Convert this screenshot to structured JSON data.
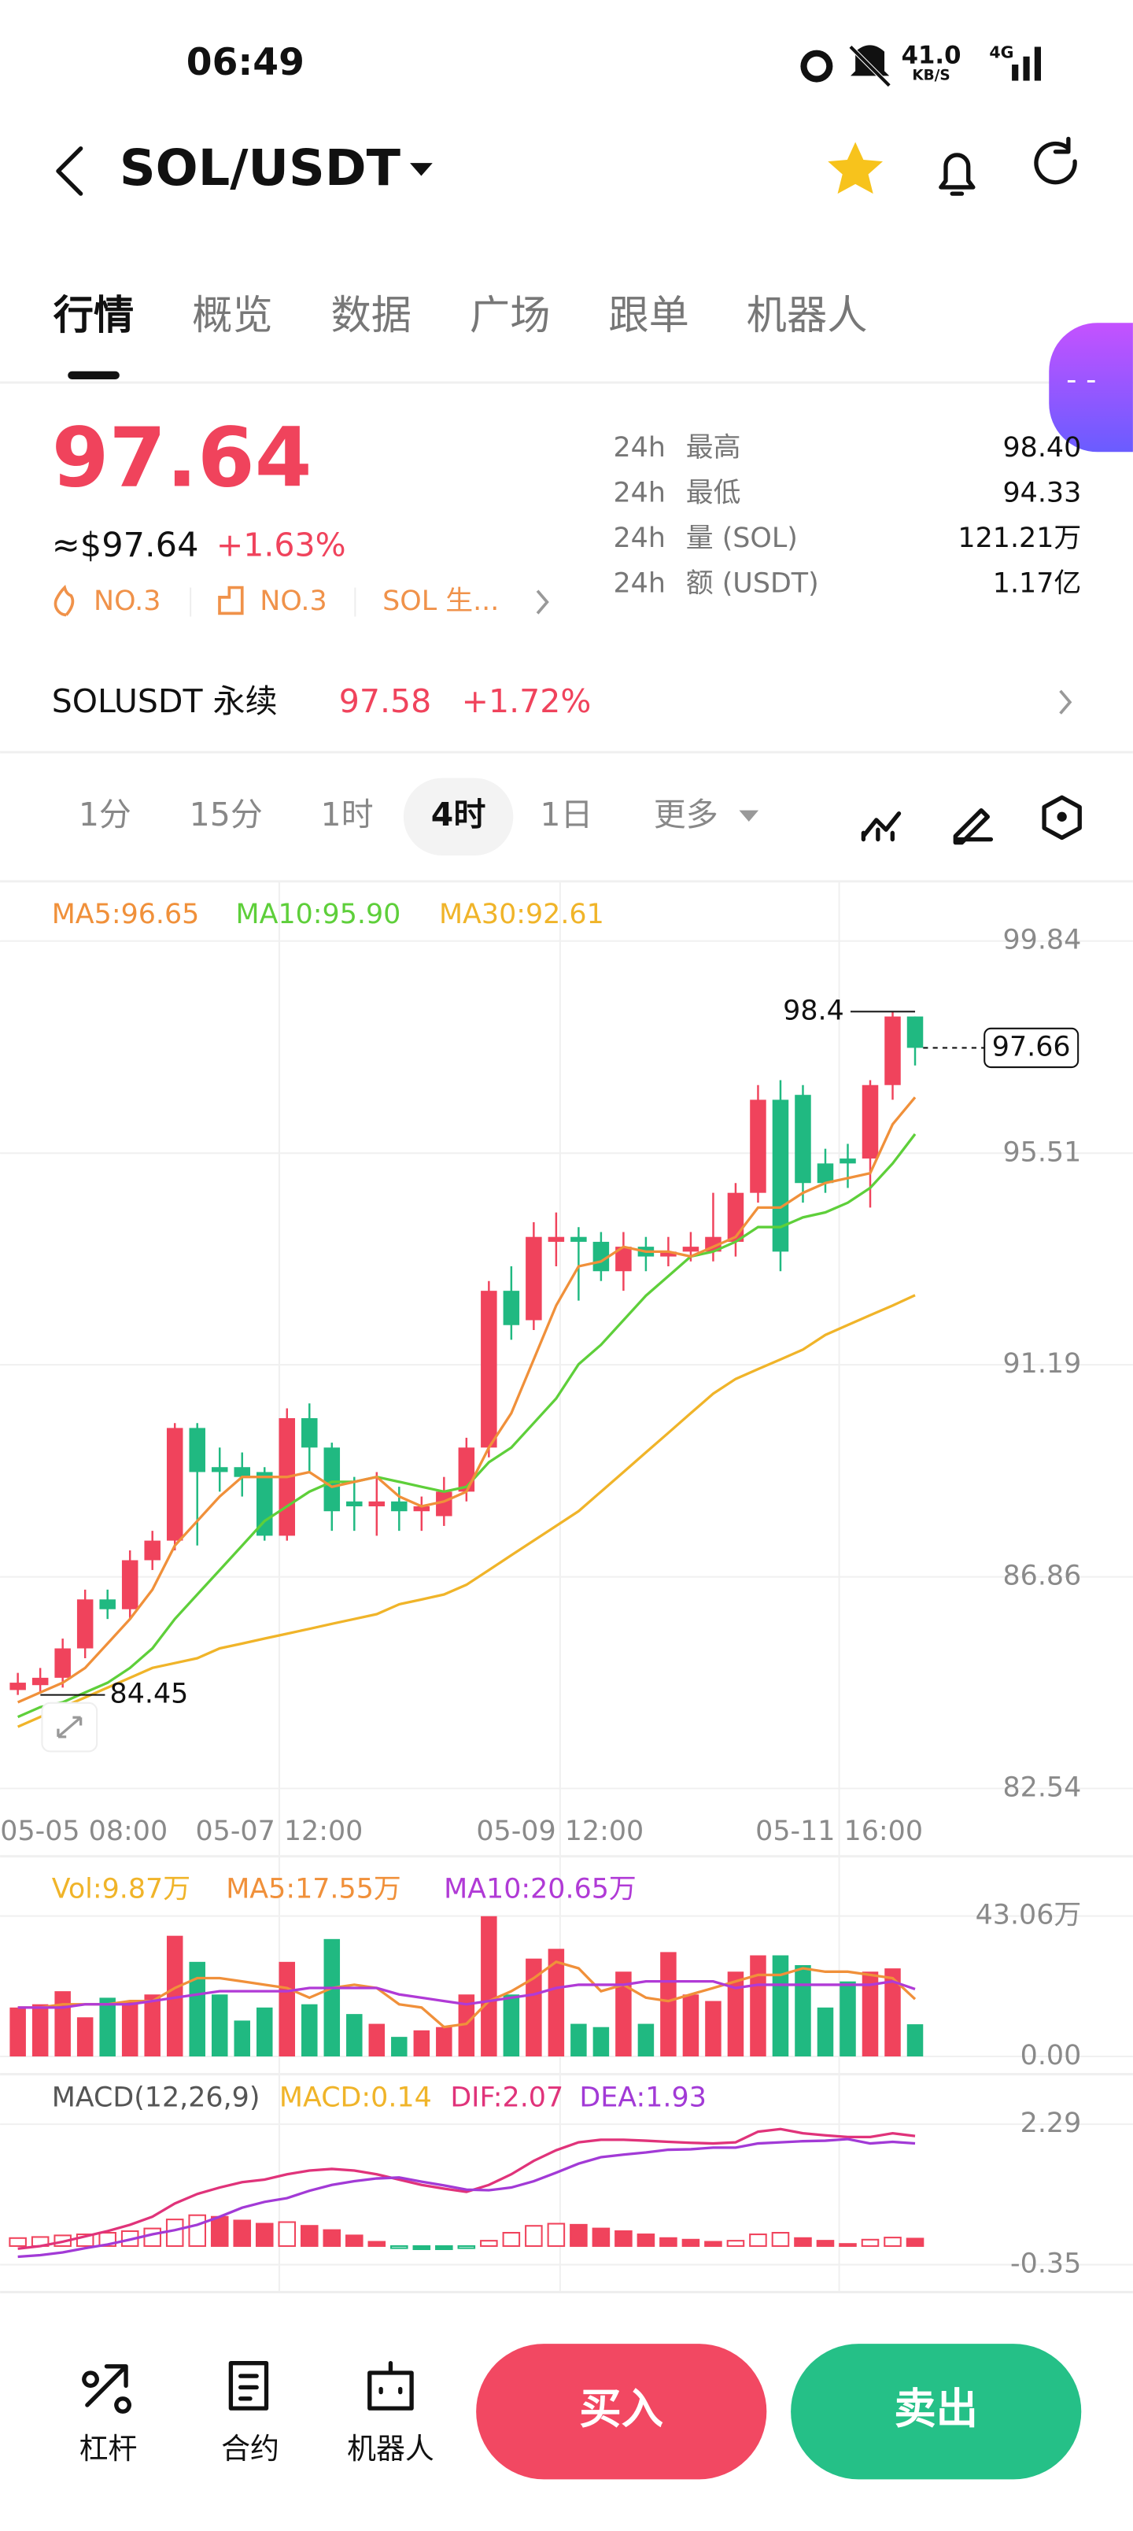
{
  "status_bar": {
    "time": "06:49",
    "speed": "41.0",
    "speed_unit": "KB/S",
    "network": "4G"
  },
  "header": {
    "pair": "SOL/USDT"
  },
  "tabs": [
    "行情",
    "概览",
    "数据",
    "广场",
    "跟单",
    "机器人"
  ],
  "ticker": {
    "price": "97.64",
    "usd_price": "≈$97.64",
    "change": "+1.63%",
    "tags": [
      "NO.3",
      "NO.3",
      "SOL 生..."
    ],
    "stats": [
      {
        "period": "24h",
        "name": "最高",
        "value": "98.40"
      },
      {
        "period": "24h",
        "name": "最低",
        "value": "94.33"
      },
      {
        "period": "24h",
        "name": "量 (SOL)",
        "value": "121.21万"
      },
      {
        "period": "24h",
        "name": "额 (USDT)",
        "value": "1.17亿"
      }
    ]
  },
  "perpetual": {
    "name": "SOLUSDT 永续",
    "price": "97.58",
    "change": "+1.72%"
  },
  "intervals": [
    "1分",
    "15分",
    "1时",
    "4时",
    "1日",
    "更多"
  ],
  "kline": {
    "legend": {
      "ma5": "MA5:96.65",
      "ma10": "MA10:95.90",
      "ma30": "MA30:92.61"
    },
    "price_ylim": [
      82.54,
      99.84
    ],
    "price_yticks": [
      99.84,
      95.51,
      91.19,
      86.86,
      82.54
    ],
    "x_labels": [
      "05-05 08:00",
      "05-07 12:00",
      "05-09 12:00",
      "05-11 16:00"
    ],
    "high_label": 98.4,
    "low_label": 84.45,
    "last_price": 97.66,
    "candles": {
      "open": [
        84.55,
        84.65,
        84.8,
        85.4,
        86.4,
        86.2,
        87.2,
        87.6,
        89.9,
        89.1,
        89.1,
        89.0,
        87.7,
        90.1,
        89.5,
        88.4,
        88.3,
        88.4,
        88.2,
        88.1,
        88.6,
        89.5,
        92.7,
        92.1,
        93.7,
        93.8,
        93.7,
        93.1,
        93.6,
        93.4,
        93.5,
        93.5,
        93.7,
        94.7,
        96.6,
        96.7,
        95.3,
        95.4,
        95.4,
        96.9,
        98.3
      ],
      "high": [
        84.9,
        85.0,
        85.6,
        86.6,
        86.6,
        87.4,
        87.8,
        90.0,
        90.0,
        89.5,
        89.4,
        89.1,
        90.3,
        90.4,
        89.6,
        88.9,
        89.0,
        88.7,
        88.5,
        88.9,
        89.7,
        92.9,
        93.2,
        94.1,
        94.3,
        94.0,
        93.9,
        93.9,
        93.8,
        93.8,
        93.9,
        94.7,
        94.9,
        96.9,
        97.0,
        96.9,
        95.6,
        95.7,
        97.0,
        98.4,
        98.3
      ],
      "low": [
        84.45,
        84.5,
        84.6,
        85.2,
        86.0,
        86.0,
        87.0,
        87.4,
        87.5,
        88.6,
        88.5,
        87.6,
        87.6,
        89.0,
        87.8,
        87.8,
        87.7,
        87.8,
        87.8,
        87.9,
        88.4,
        89.3,
        91.7,
        91.9,
        93.2,
        92.5,
        92.9,
        92.7,
        93.1,
        93.2,
        93.3,
        93.3,
        93.4,
        94.5,
        93.1,
        94.5,
        94.7,
        94.8,
        94.4,
        96.6,
        97.3
      ],
      "close": [
        84.7,
        84.8,
        85.4,
        86.4,
        86.2,
        87.2,
        87.6,
        89.9,
        89.0,
        89.0,
        88.9,
        87.7,
        90.1,
        89.5,
        88.2,
        88.3,
        88.4,
        88.2,
        88.3,
        88.6,
        89.5,
        92.7,
        92.0,
        93.8,
        93.8,
        93.7,
        93.1,
        93.6,
        93.4,
        93.5,
        93.6,
        93.8,
        94.7,
        96.6,
        93.5,
        94.9,
        94.9,
        95.3,
        96.9,
        98.3,
        97.66
      ]
    },
    "ma5": [
      84.3,
      84.5,
      84.7,
      85.0,
      85.5,
      86.0,
      86.6,
      87.5,
      88.0,
      88.5,
      88.9,
      88.9,
      88.9,
      89.0,
      88.7,
      88.8,
      88.9,
      88.5,
      88.3,
      88.4,
      88.6,
      89.5,
      90.2,
      91.3,
      92.4,
      93.2,
      93.3,
      93.6,
      93.5,
      93.5,
      93.4,
      93.6,
      93.8,
      94.4,
      94.4,
      94.7,
      94.9,
      95.0,
      95.1,
      96.1,
      96.65
    ],
    "ma10": [
      84.0,
      84.2,
      84.3,
      84.5,
      84.7,
      85.0,
      85.4,
      86.0,
      86.5,
      87.0,
      87.5,
      88.0,
      88.3,
      88.6,
      88.8,
      88.8,
      88.9,
      88.8,
      88.7,
      88.6,
      88.7,
      89.2,
      89.5,
      90.0,
      90.5,
      91.2,
      91.6,
      92.1,
      92.6,
      93.0,
      93.4,
      93.5,
      93.7,
      94.0,
      94.0,
      94.2,
      94.3,
      94.5,
      94.8,
      95.3,
      95.9
    ],
    "ma30": [
      83.8,
      84.0,
      84.2,
      84.4,
      84.6,
      84.8,
      85.0,
      85.1,
      85.2,
      85.4,
      85.5,
      85.6,
      85.7,
      85.8,
      85.9,
      86.0,
      86.1,
      86.3,
      86.4,
      86.5,
      86.7,
      87.0,
      87.3,
      87.6,
      87.9,
      88.2,
      88.6,
      89.0,
      89.4,
      89.8,
      90.2,
      90.6,
      90.9,
      91.1,
      91.3,
      91.5,
      91.8,
      92.0,
      92.2,
      92.4,
      92.61
    ],
    "volume": {
      "legend": {
        "vol": "Vol:9.87万",
        "ma5": "MA5:17.55万",
        "ma10": "MA10:20.65万"
      },
      "ylim": [
        0,
        43.06
      ],
      "yticks": [
        {
          "value": 43.06,
          "label": "43.06万"
        },
        {
          "value": 0,
          "label": "0.00"
        }
      ],
      "values": [
        15,
        16,
        20,
        12,
        18,
        17,
        19,
        37,
        29,
        19,
        11,
        15,
        29,
        16,
        36,
        13,
        10,
        6,
        8,
        9,
        19,
        43,
        19,
        30,
        33,
        10,
        9,
        26,
        10,
        32,
        19,
        17,
        26,
        31,
        31,
        28,
        15,
        23,
        26,
        27,
        9.87
      ],
      "ma5": [
        15,
        15,
        16,
        16,
        16,
        17,
        17,
        21,
        24,
        24,
        23,
        22,
        21,
        18,
        21,
        22,
        21,
        16,
        15,
        9,
        10,
        17,
        20,
        24,
        29,
        27,
        20,
        22,
        18,
        17,
        19,
        21,
        23,
        25,
        25,
        27,
        26,
        26,
        25,
        24,
        17.55
      ],
      "ma10": [
        15,
        15,
        15,
        16,
        16,
        16,
        17,
        18,
        19,
        20,
        20,
        20,
        20,
        21,
        21,
        21,
        21,
        19,
        18,
        17,
        16,
        17,
        18,
        19,
        21,
        22,
        22,
        22,
        23,
        23,
        23,
        23,
        21,
        22,
        22,
        22,
        22,
        22,
        22,
        23,
        20.65
      ]
    },
    "macd": {
      "legend": {
        "name": "MACD(12,26,9)",
        "macd": "MACD:0.14",
        "dif": "DIF:2.07",
        "dea": "DEA:1.93"
      },
      "ylim": [
        -0.35,
        2.29
      ],
      "yticks": [
        2.29,
        -0.35
      ],
      "hist": [
        0.15,
        0.17,
        0.2,
        0.22,
        0.25,
        0.28,
        0.33,
        0.5,
        0.58,
        0.55,
        0.48,
        0.42,
        0.45,
        0.38,
        0.3,
        0.2,
        0.08,
        -0.04,
        -0.06,
        -0.06,
        -0.04,
        0.1,
        0.25,
        0.38,
        0.42,
        0.4,
        0.33,
        0.28,
        0.22,
        0.15,
        0.12,
        0.08,
        0.1,
        0.22,
        0.25,
        0.15,
        0.1,
        0.04,
        0.12,
        0.16,
        0.14
      ],
      "dif": [
        -0.05,
        0.0,
        0.08,
        0.18,
        0.28,
        0.4,
        0.55,
        0.8,
        0.98,
        1.1,
        1.2,
        1.25,
        1.35,
        1.42,
        1.45,
        1.42,
        1.35,
        1.25,
        1.15,
        1.08,
        1.02,
        1.15,
        1.35,
        1.6,
        1.8,
        1.95,
        2.0,
        2.0,
        1.98,
        1.96,
        1.94,
        1.93,
        1.95,
        2.15,
        2.2,
        2.12,
        2.08,
        2.05,
        2.05,
        2.12,
        2.07
      ],
      "dea": [
        -0.2,
        -0.17,
        -0.12,
        -0.04,
        0.03,
        0.12,
        0.22,
        0.3,
        0.4,
        0.55,
        0.72,
        0.83,
        0.9,
        1.04,
        1.15,
        1.22,
        1.27,
        1.29,
        1.21,
        1.14,
        1.06,
        1.05,
        1.1,
        1.22,
        1.38,
        1.55,
        1.67,
        1.72,
        1.76,
        1.81,
        1.82,
        1.85,
        1.85,
        1.93,
        1.95,
        1.97,
        1.98,
        2.01,
        1.93,
        1.96,
        1.93
      ]
    }
  },
  "bottom_bar": {
    "tools": [
      "杠杆",
      "合约",
      "机器人"
    ],
    "buy": "买入",
    "sell": "卖出"
  }
}
